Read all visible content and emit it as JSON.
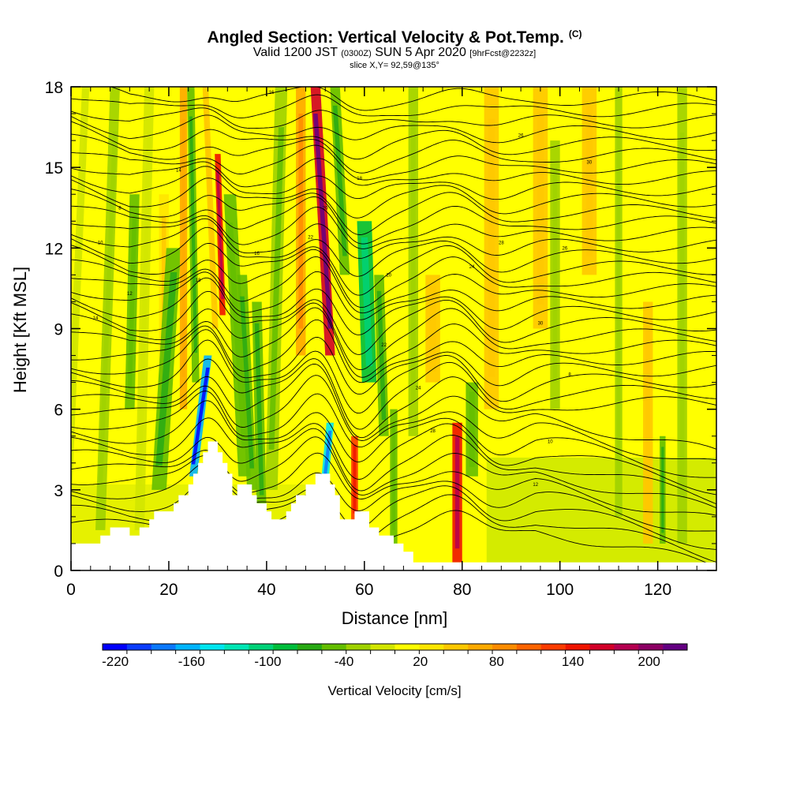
{
  "header": {
    "title": "Angled Section: Vertical Velocity & Pot.Temp.",
    "title_note": "(C)",
    "valid_a": "Valid 1200 JST",
    "valid_utc": "(0300Z)",
    "valid_b": "SUN 5 Apr 2020",
    "forecast": "[9hrFcst@2232z]",
    "slice": "slice X,Y= 92,59@135°"
  },
  "chart_data": {
    "type": "heatmap",
    "xlabel": "Distance [nm]",
    "ylabel": "Height [Kft MSL]",
    "xlim": [
      0,
      132
    ],
    "ylim": [
      0,
      18
    ],
    "x_ticks": [
      0,
      20,
      40,
      60,
      80,
      100,
      120
    ],
    "y_ticks": [
      0,
      3,
      6,
      9,
      12,
      15,
      18
    ],
    "grid": false,
    "colorbar": {
      "label": "Vertical Velocity [cm/s]",
      "range": [
        -230,
        230
      ],
      "tick_labels": [
        "-220",
        "-160",
        "-100",
        "-40",
        "20",
        "80",
        "140",
        "200"
      ],
      "tick_values": [
        -220,
        -160,
        -100,
        -40,
        20,
        80,
        140,
        200
      ],
      "colors": [
        "#0000ff",
        "#0a3cff",
        "#0a78ff",
        "#00b4ff",
        "#00e6f0",
        "#00e6b4",
        "#00d278",
        "#00be3c",
        "#28aa14",
        "#64be00",
        "#a0d200",
        "#d2e600",
        "#ffff00",
        "#ffe600",
        "#ffc800",
        "#ffaa00",
        "#ff8c00",
        "#ff6400",
        "#ff3c00",
        "#f01400",
        "#d20028",
        "#b40050",
        "#8c0064",
        "#640082"
      ]
    },
    "velocity_bands": [
      {
        "x": 3,
        "top": 18,
        "bottom": 1,
        "w": 1.5,
        "tilt": -4,
        "v": -15
      },
      {
        "x": 9,
        "top": 18,
        "bottom": 1.5,
        "w": 2,
        "tilt": -3,
        "v": -25
      },
      {
        "x": 13,
        "top": 14,
        "bottom": 6,
        "w": 2,
        "tilt": -1,
        "v": -40
      },
      {
        "x": 16,
        "top": 18,
        "bottom": 1.5,
        "w": 2,
        "tilt": -2,
        "v": -15
      },
      {
        "x": 19,
        "top": 14,
        "bottom": 6,
        "w": 2,
        "tilt": 0,
        "v": 35
      },
      {
        "x": 21,
        "top": 12,
        "bottom": 3,
        "w": 3,
        "tilt": -3,
        "v": -50
      },
      {
        "x": 23,
        "top": 18,
        "bottom": 6,
        "w": 1.5,
        "tilt": 0,
        "v": 60
      },
      {
        "x": 24.5,
        "top": 18,
        "bottom": 7,
        "w": 1.5,
        "tilt": 1,
        "v": -50
      },
      {
        "x": 27.5,
        "top": 18,
        "bottom": 9,
        "w": 1.2,
        "tilt": 2,
        "v": 45
      },
      {
        "x": 30,
        "top": 15.5,
        "bottom": 9.5,
        "w": 1.2,
        "tilt": 1,
        "v": 140
      },
      {
        "x": 32.5,
        "top": 14,
        "bottom": 3.5,
        "w": 2.5,
        "tilt": 3,
        "v": -45
      },
      {
        "x": 28,
        "top": 8,
        "bottom": 3.5,
        "w": 1.6,
        "tilt": -3,
        "v": -170
      },
      {
        "x": 35,
        "top": 11,
        "bottom": 3,
        "w": 2,
        "tilt": 2,
        "v": -55
      },
      {
        "x": 38,
        "top": 10,
        "bottom": 2,
        "w": 2,
        "tilt": 1,
        "v": -50
      },
      {
        "x": 43,
        "top": 18,
        "bottom": 3,
        "w": 2.5,
        "tilt": -2,
        "v": -35
      },
      {
        "x": 47,
        "top": 18,
        "bottom": 8,
        "w": 2,
        "tilt": 0,
        "v": 70
      },
      {
        "x": 50,
        "top": 18,
        "bottom": 8,
        "w": 2,
        "tilt": 3,
        "v": 170
      },
      {
        "x": 54,
        "top": 18,
        "bottom": 11,
        "w": 2,
        "tilt": 2,
        "v": -50
      },
      {
        "x": 60,
        "top": 13,
        "bottom": 7,
        "w": 3,
        "tilt": 1,
        "v": -80
      },
      {
        "x": 63,
        "top": 11,
        "bottom": 5,
        "w": 2,
        "tilt": 1,
        "v": -50
      },
      {
        "x": 53,
        "top": 5.5,
        "bottom": 2.5,
        "w": 1.5,
        "tilt": -1.5,
        "v": -140
      },
      {
        "x": 58,
        "top": 5,
        "bottom": 1.8,
        "w": 1.4,
        "tilt": 0,
        "v": 120
      },
      {
        "x": 66,
        "top": 6,
        "bottom": 1,
        "w": 1.5,
        "tilt": 0,
        "v": -40
      },
      {
        "x": 70,
        "top": 18,
        "bottom": 5,
        "w": 2,
        "tilt": 0,
        "v": -25
      },
      {
        "x": 74,
        "top": 11,
        "bottom": 7,
        "w": 3,
        "tilt": 0,
        "v": 40
      },
      {
        "x": 79,
        "top": 5.5,
        "bottom": 0.3,
        "w": 2,
        "tilt": 0,
        "v": 150
      },
      {
        "x": 82,
        "top": 7,
        "bottom": 3.5,
        "w": 2.5,
        "tilt": 0,
        "v": -40
      },
      {
        "x": 86,
        "top": 18,
        "bottom": 6,
        "w": 3,
        "tilt": 0,
        "v": 40
      },
      {
        "x": 96,
        "top": 18,
        "bottom": 9,
        "w": 3,
        "tilt": 0,
        "v": 40
      },
      {
        "x": 99,
        "top": 16,
        "bottom": 6,
        "w": 2,
        "tilt": 0,
        "v": -25
      },
      {
        "x": 106,
        "top": 18,
        "bottom": 11,
        "w": 3,
        "tilt": 0,
        "v": 40
      },
      {
        "x": 112,
        "top": 18,
        "bottom": 2,
        "w": 1.5,
        "tilt": 0,
        "v": -25
      },
      {
        "x": 118,
        "top": 10,
        "bottom": 1,
        "w": 2,
        "tilt": 0,
        "v": 40
      },
      {
        "x": 121,
        "top": 5,
        "bottom": 1,
        "w": 1.2,
        "tilt": 0,
        "v": -50
      },
      {
        "x": 125,
        "top": 18,
        "bottom": 1,
        "w": 2,
        "tilt": 0,
        "v": -25
      }
    ],
    "terrain": [
      [
        0,
        1
      ],
      [
        6,
        1
      ],
      [
        6,
        1.3
      ],
      [
        8,
        1.3
      ],
      [
        8,
        1.6
      ],
      [
        12,
        1.6
      ],
      [
        12,
        1.3
      ],
      [
        14,
        1.3
      ],
      [
        14,
        1.6
      ],
      [
        16,
        1.6
      ],
      [
        16,
        1.9
      ],
      [
        17,
        1.9
      ],
      [
        17,
        2.2
      ],
      [
        21,
        2.2
      ],
      [
        21,
        2.5
      ],
      [
        22,
        2.5
      ],
      [
        22,
        2.8
      ],
      [
        24,
        2.8
      ],
      [
        24,
        3.2
      ],
      [
        25,
        3.2
      ],
      [
        25,
        3.6
      ],
      [
        26,
        3.6
      ],
      [
        26,
        4.0
      ],
      [
        27,
        4.0
      ],
      [
        27,
        4.4
      ],
      [
        28,
        4.4
      ],
      [
        28,
        4.8
      ],
      [
        30,
        4.8
      ],
      [
        30,
        4.4
      ],
      [
        31,
        4.4
      ],
      [
        31,
        4.0
      ],
      [
        32,
        4.0
      ],
      [
        32,
        3.6
      ],
      [
        33,
        3.6
      ],
      [
        33,
        2.8
      ],
      [
        34,
        2.8
      ],
      [
        34,
        3.2
      ],
      [
        35,
        3.2
      ],
      [
        35,
        3.2
      ],
      [
        37,
        3.2
      ],
      [
        37,
        2.8
      ],
      [
        38,
        2.8
      ],
      [
        38,
        2.5
      ],
      [
        40,
        2.5
      ],
      [
        40,
        2.2
      ],
      [
        41,
        2.2
      ],
      [
        41,
        1.9
      ],
      [
        44,
        1.9
      ],
      [
        44,
        2.2
      ],
      [
        45,
        2.2
      ],
      [
        45,
        2.5
      ],
      [
        46,
        2.5
      ],
      [
        46,
        2.8
      ],
      [
        48,
        2.8
      ],
      [
        48,
        3.2
      ],
      [
        50,
        3.2
      ],
      [
        50,
        3.6
      ],
      [
        53,
        3.6
      ],
      [
        53,
        3.2
      ],
      [
        54,
        3.2
      ],
      [
        54,
        2.8
      ],
      [
        55,
        2.8
      ],
      [
        55,
        1.9
      ],
      [
        58,
        1.9
      ],
      [
        58,
        2.2
      ],
      [
        61,
        2.2
      ],
      [
        61,
        1.6
      ],
      [
        63,
        1.6
      ],
      [
        63,
        1.3
      ],
      [
        66,
        1.3
      ],
      [
        66,
        1.0
      ],
      [
        68,
        1.0
      ],
      [
        68,
        0.7
      ],
      [
        70,
        0.7
      ],
      [
        70,
        0.3
      ],
      [
        132,
        0.3
      ]
    ],
    "isentrope_labels": [
      "8",
      "10",
      "12",
      "14",
      "16",
      "18",
      "20",
      "22",
      "24",
      "26",
      "28",
      "30"
    ]
  }
}
